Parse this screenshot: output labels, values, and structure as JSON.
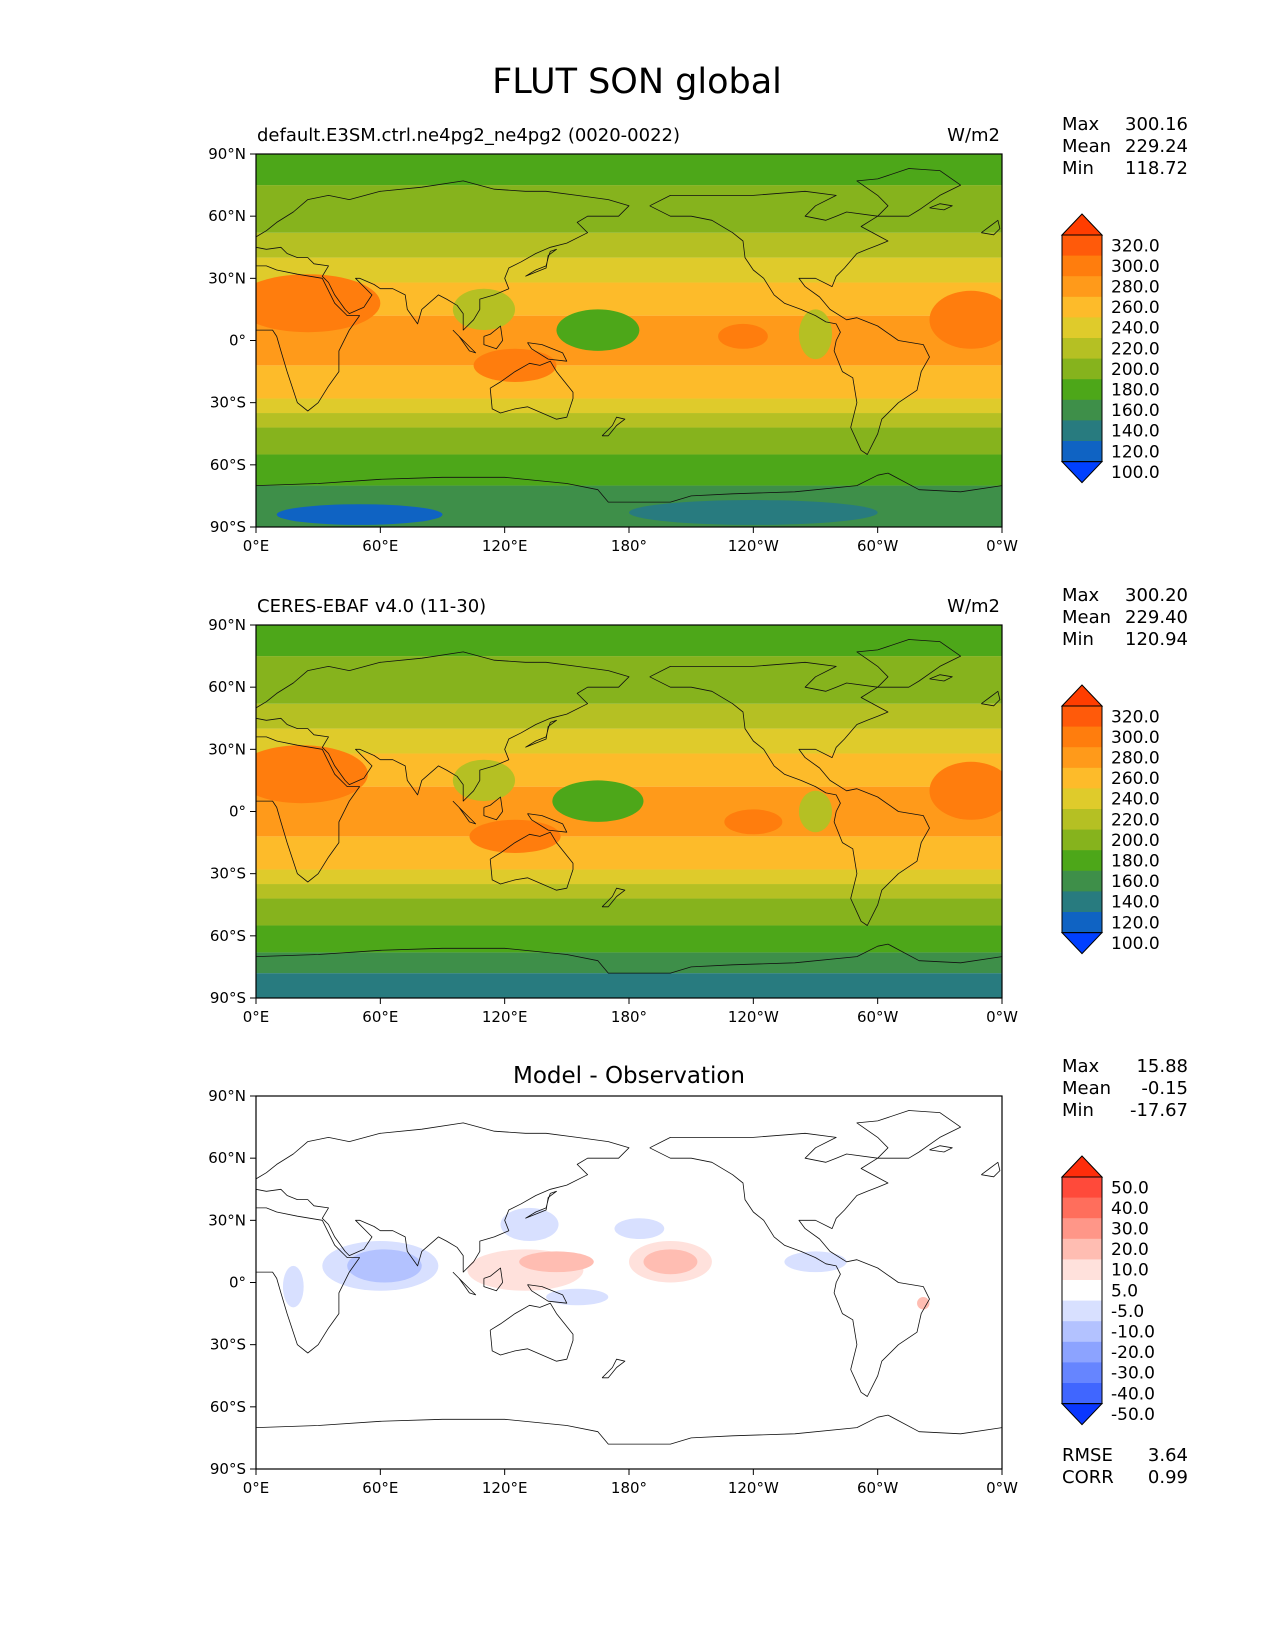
{
  "title": "FLUT SON global",
  "x_ticks": [
    "0°E",
    "60°E",
    "120°E",
    "180°",
    "120°W",
    "60°W",
    "0°W"
  ],
  "y_ticks": [
    "90°N",
    "60°N",
    "30°N",
    "0°",
    "30°S",
    "60°S",
    "90°S"
  ],
  "panels": [
    {
      "id": "model",
      "left_title": "default.E3SM.ctrl.ne4pg2_ne4pg2 (0020-0022)",
      "center_title": "",
      "units": "W/m2",
      "stats": [
        {
          "label": "Max",
          "value": "300.16"
        },
        {
          "label": "Mean",
          "value": "229.24"
        },
        {
          "label": "Min",
          "value": "118.72"
        }
      ],
      "colorbar": {
        "labels": [
          "320.0",
          "300.0",
          "280.0",
          "260.0",
          "240.0",
          "220.0",
          "200.0",
          "180.0",
          "160.0",
          "140.0",
          "120.0",
          "100.0"
        ],
        "colors": [
          "#ff3d00",
          "#ff5a0a",
          "#ff7d0d",
          "#ff9a1a",
          "#fdbb2a",
          "#dfcb2b",
          "#b5c023",
          "#86b31d",
          "#4da719",
          "#3e8f49",
          "#287b7f",
          "#0f63c3",
          "#0040ff"
        ]
      },
      "bands": [
        {
          "color": "#3e8f49",
          "y0": -90,
          "y1": -70
        },
        {
          "color": "#4da719",
          "y0": -70,
          "y1": -55
        },
        {
          "color": "#86b31d",
          "y0": -55,
          "y1": -42
        },
        {
          "color": "#b5c023",
          "y0": -42,
          "y1": -35
        },
        {
          "color": "#dfcb2b",
          "y0": -35,
          "y1": -28
        },
        {
          "color": "#fdbb2a",
          "y0": -28,
          "y1": -12
        },
        {
          "color": "#ff9a1a",
          "y0": -12,
          "y1": 12
        },
        {
          "color": "#fdbb2a",
          "y0": 12,
          "y1": 28
        },
        {
          "color": "#dfcb2b",
          "y0": 28,
          "y1": 40
        },
        {
          "color": "#b5c023",
          "y0": 40,
          "y1": 52
        },
        {
          "color": "#86b31d",
          "y0": 52,
          "y1": 75
        },
        {
          "color": "#4da719",
          "y0": 75,
          "y1": 90
        }
      ],
      "blobs": [
        {
          "color": "#ff7d0d",
          "lon": 25,
          "lat": 18,
          "rlon": 35,
          "rlat": 14
        },
        {
          "color": "#ff7d0d",
          "lon": 125,
          "lat": -12,
          "rlon": 20,
          "rlat": 8
        },
        {
          "color": "#ff7d0d",
          "lon": 235,
          "lat": 2,
          "rlon": 12,
          "rlat": 6
        },
        {
          "color": "#ff7d0d",
          "lon": 345,
          "lat": 10,
          "rlon": 20,
          "rlat": 14
        },
        {
          "color": "#4da719",
          "lon": 165,
          "lat": 5,
          "rlon": 20,
          "rlat": 10
        },
        {
          "color": "#b5c023",
          "lon": 110,
          "lat": 15,
          "rlon": 15,
          "rlat": 10
        },
        {
          "color": "#b5c023",
          "lon": 270,
          "lat": 3,
          "rlon": 8,
          "rlat": 12
        },
        {
          "color": "#0f63c3",
          "lon": 50,
          "lat": -84,
          "rlon": 40,
          "rlat": 5
        },
        {
          "color": "#287b7f",
          "lon": 240,
          "lat": -83,
          "rlon": 60,
          "rlat": 6
        }
      ]
    },
    {
      "id": "obs",
      "left_title": "CERES-EBAF v4.0 (11-30)",
      "center_title": "",
      "units": "W/m2",
      "stats": [
        {
          "label": "Max",
          "value": "300.20"
        },
        {
          "label": "Mean",
          "value": "229.40"
        },
        {
          "label": "Min",
          "value": "120.94"
        }
      ],
      "colorbar": {
        "labels": [
          "320.0",
          "300.0",
          "280.0",
          "260.0",
          "240.0",
          "220.0",
          "200.0",
          "180.0",
          "160.0",
          "140.0",
          "120.0",
          "100.0"
        ],
        "colors": [
          "#ff3d00",
          "#ff5a0a",
          "#ff7d0d",
          "#ff9a1a",
          "#fdbb2a",
          "#dfcb2b",
          "#b5c023",
          "#86b31d",
          "#4da719",
          "#3e8f49",
          "#287b7f",
          "#0f63c3",
          "#0040ff"
        ]
      },
      "bands": [
        {
          "color": "#287b7f",
          "y0": -90,
          "y1": -78
        },
        {
          "color": "#3e8f49",
          "y0": -78,
          "y1": -68
        },
        {
          "color": "#4da719",
          "y0": -68,
          "y1": -55
        },
        {
          "color": "#86b31d",
          "y0": -55,
          "y1": -42
        },
        {
          "color": "#b5c023",
          "y0": -42,
          "y1": -35
        },
        {
          "color": "#dfcb2b",
          "y0": -35,
          "y1": -28
        },
        {
          "color": "#fdbb2a",
          "y0": -28,
          "y1": -12
        },
        {
          "color": "#ff9a1a",
          "y0": -12,
          "y1": 12
        },
        {
          "color": "#fdbb2a",
          "y0": 12,
          "y1": 28
        },
        {
          "color": "#dfcb2b",
          "y0": 28,
          "y1": 40
        },
        {
          "color": "#b5c023",
          "y0": 40,
          "y1": 52
        },
        {
          "color": "#86b31d",
          "y0": 52,
          "y1": 75
        },
        {
          "color": "#4da719",
          "y0": 75,
          "y1": 90
        }
      ],
      "blobs": [
        {
          "color": "#ff7d0d",
          "lon": 22,
          "lat": 18,
          "rlon": 32,
          "rlat": 14
        },
        {
          "color": "#ff7d0d",
          "lon": 125,
          "lat": -12,
          "rlon": 22,
          "rlat": 8
        },
        {
          "color": "#ff7d0d",
          "lon": 240,
          "lat": -5,
          "rlon": 14,
          "rlat": 6
        },
        {
          "color": "#ff7d0d",
          "lon": 345,
          "lat": 10,
          "rlon": 20,
          "rlat": 14
        },
        {
          "color": "#4da719",
          "lon": 165,
          "lat": 5,
          "rlon": 22,
          "rlat": 10
        },
        {
          "color": "#b5c023",
          "lon": 110,
          "lat": 15,
          "rlon": 15,
          "rlat": 10
        },
        {
          "color": "#b5c023",
          "lon": 270,
          "lat": 0,
          "rlon": 8,
          "rlat": 10
        }
      ]
    },
    {
      "id": "diff",
      "left_title": "",
      "center_title": "Model - Observation",
      "units": "",
      "stats": [
        {
          "label": "Max",
          "value": "15.88"
        },
        {
          "label": "Mean",
          "value": "-0.15"
        },
        {
          "label": "Min",
          "value": "-17.67"
        }
      ],
      "colorbar": {
        "labels": [
          "50.0",
          "40.0",
          "30.0",
          "20.0",
          "10.0",
          "5.0",
          "-5.0",
          "-10.0",
          "-20.0",
          "-30.0",
          "-40.0",
          "-50.0"
        ],
        "colors": [
          "#ff2d0a",
          "#ff4a3a",
          "#ff6e5c",
          "#ff9688",
          "#ffbdb2",
          "#ffe1dc",
          "#ffffff",
          "#d8e0ff",
          "#b3c2ff",
          "#8ca3ff",
          "#6685ff",
          "#4066ff",
          "#0a37ff"
        ]
      },
      "bands": [],
      "blobs": [
        {
          "color": "#d8e0ff",
          "lon": 60,
          "lat": 8,
          "rlon": 28,
          "rlat": 12
        },
        {
          "color": "#b3c2ff",
          "lon": 62,
          "lat": 8,
          "rlon": 18,
          "rlat": 8
        },
        {
          "color": "#d8e0ff",
          "lon": 18,
          "lat": -2,
          "rlon": 5,
          "rlat": 10
        },
        {
          "color": "#d8e0ff",
          "lon": 132,
          "lat": 28,
          "rlon": 14,
          "rlat": 8
        },
        {
          "color": "#d8e0ff",
          "lon": 185,
          "lat": 26,
          "rlon": 12,
          "rlat": 5
        },
        {
          "color": "#d8e0ff",
          "lon": 155,
          "lat": -7,
          "rlon": 15,
          "rlat": 4
        },
        {
          "color": "#d8e0ff",
          "lon": 270,
          "lat": 10,
          "rlon": 15,
          "rlat": 5
        },
        {
          "color": "#ffe1dc",
          "lon": 130,
          "lat": 6,
          "rlon": 28,
          "rlat": 10
        },
        {
          "color": "#ffbdb2",
          "lon": 145,
          "lat": 10,
          "rlon": 18,
          "rlat": 5
        },
        {
          "color": "#ffe1dc",
          "lon": 200,
          "lat": 10,
          "rlon": 20,
          "rlat": 10
        },
        {
          "color": "#ffbdb2",
          "lon": 200,
          "lat": 10,
          "rlon": 13,
          "rlat": 6
        },
        {
          "color": "#ffbdb2",
          "lon": 322,
          "lat": -10,
          "rlon": 3,
          "rlat": 3
        }
      ],
      "extra_stats": [
        {
          "label": "RMSE",
          "value": "3.64"
        },
        {
          "label": "CORR",
          "value": "0.99"
        }
      ]
    }
  ],
  "coastlines": [
    [
      [
        0,
        5
      ],
      [
        8,
        5
      ],
      [
        10,
        2
      ],
      [
        12,
        -5
      ],
      [
        15,
        -15
      ],
      [
        20,
        -30
      ],
      [
        25,
        -34
      ],
      [
        30,
        -30
      ],
      [
        35,
        -22
      ],
      [
        40,
        -15
      ],
      [
        40,
        -5
      ],
      [
        45,
        5
      ],
      [
        50,
        12
      ],
      [
        44,
        12
      ],
      [
        38,
        18
      ],
      [
        32,
        30
      ],
      [
        20,
        32
      ],
      [
        10,
        34
      ],
      [
        5,
        36
      ],
      [
        0,
        36
      ]
    ],
    [
      [
        0,
        50
      ],
      [
        5,
        53
      ],
      [
        10,
        57
      ],
      [
        18,
        62
      ],
      [
        25,
        68
      ],
      [
        35,
        70
      ],
      [
        45,
        68
      ],
      [
        60,
        72
      ],
      [
        80,
        74
      ],
      [
        100,
        77
      ],
      [
        115,
        73
      ],
      [
        130,
        72
      ],
      [
        140,
        72
      ],
      [
        155,
        70
      ],
      [
        170,
        68
      ],
      [
        180,
        65
      ],
      [
        175,
        60
      ],
      [
        160,
        60
      ],
      [
        155,
        57
      ],
      [
        160,
        52
      ],
      [
        150,
        47
      ],
      [
        142,
        45
      ],
      [
        135,
        42
      ],
      [
        128,
        38
      ],
      [
        122,
        35
      ],
      [
        120,
        30
      ],
      [
        122,
        25
      ],
      [
        115,
        22
      ],
      [
        108,
        20
      ],
      [
        108,
        15
      ],
      [
        105,
        10
      ],
      [
        100,
        5
      ],
      [
        100,
        13
      ],
      [
        97,
        17
      ],
      [
        92,
        20
      ],
      [
        88,
        22
      ],
      [
        80,
        15
      ],
      [
        78,
        8
      ],
      [
        73,
        15
      ],
      [
        72,
        22
      ],
      [
        66,
        25
      ],
      [
        60,
        25
      ],
      [
        57,
        27
      ],
      [
        50,
        30
      ],
      [
        48,
        30
      ],
      [
        56,
        22
      ],
      [
        52,
        16
      ],
      [
        45,
        13
      ],
      [
        43,
        15
      ],
      [
        38,
        22
      ],
      [
        35,
        28
      ],
      [
        32,
        31
      ],
      [
        35,
        36
      ],
      [
        28,
        37
      ],
      [
        25,
        40
      ],
      [
        20,
        40
      ],
      [
        15,
        42
      ],
      [
        12,
        45
      ],
      [
        5,
        44
      ],
      [
        0,
        45
      ]
    ],
    [
      [
        113,
        -23
      ],
      [
        114,
        -33
      ],
      [
        118,
        -35
      ],
      [
        125,
        -33
      ],
      [
        131,
        -32
      ],
      [
        138,
        -35
      ],
      [
        145,
        -38
      ],
      [
        150,
        -37
      ],
      [
        153,
        -28
      ],
      [
        153,
        -25
      ],
      [
        145,
        -15
      ],
      [
        142,
        -10
      ],
      [
        137,
        -12
      ],
      [
        132,
        -11
      ],
      [
        125,
        -15
      ],
      [
        118,
        -20
      ],
      [
        113,
        -23
      ]
    ],
    [
      [
        95,
        5
      ],
      [
        100,
        0
      ],
      [
        106,
        -6
      ],
      [
        103,
        -5
      ],
      [
        98,
        2
      ],
      [
        95,
        5
      ]
    ],
    [
      [
        110,
        2
      ],
      [
        113,
        3
      ],
      [
        118,
        7
      ],
      [
        119,
        0
      ],
      [
        116,
        -4
      ],
      [
        110,
        -2
      ],
      [
        110,
        2
      ]
    ],
    [
      [
        131,
        -1
      ],
      [
        138,
        -2
      ],
      [
        148,
        -6
      ],
      [
        150,
        -10
      ],
      [
        141,
        -9
      ],
      [
        133,
        -4
      ],
      [
        131,
        -1
      ]
    ],
    [
      [
        130,
        31
      ],
      [
        135,
        34
      ],
      [
        140,
        36
      ],
      [
        141,
        40
      ],
      [
        142,
        43
      ],
      [
        145,
        44
      ],
      [
        141,
        41
      ],
      [
        140,
        35
      ],
      [
        135,
        33
      ],
      [
        130,
        31
      ]
    ],
    [
      [
        167,
        -46
      ],
      [
        172,
        -41
      ],
      [
        174,
        -37
      ],
      [
        178,
        -38
      ],
      [
        174,
        -41
      ],
      [
        170,
        -46
      ],
      [
        167,
        -46
      ]
    ],
    [
      [
        190,
        65
      ],
      [
        200,
        60
      ],
      [
        210,
        60
      ],
      [
        220,
        58
      ],
      [
        230,
        52
      ],
      [
        235,
        48
      ],
      [
        236,
        40
      ],
      [
        240,
        34
      ],
      [
        245,
        30
      ],
      [
        250,
        22
      ],
      [
        255,
        18
      ],
      [
        263,
        15
      ],
      [
        270,
        12
      ],
      [
        275,
        9
      ],
      [
        280,
        8
      ],
      [
        282,
        4
      ],
      [
        280,
        0
      ],
      [
        279,
        -5
      ],
      [
        283,
        -15
      ],
      [
        288,
        -18
      ],
      [
        290,
        -30
      ],
      [
        287,
        -42
      ],
      [
        292,
        -53
      ],
      [
        295,
        -55
      ],
      [
        300,
        -45
      ],
      [
        302,
        -38
      ],
      [
        310,
        -30
      ],
      [
        319,
        -24
      ],
      [
        321,
        -15
      ],
      [
        325,
        -8
      ],
      [
        322,
        -2
      ],
      [
        310,
        0
      ],
      [
        300,
        7
      ],
      [
        290,
        11
      ],
      [
        285,
        10
      ],
      [
        277,
        15
      ],
      [
        272,
        21
      ],
      [
        265,
        26
      ],
      [
        262,
        30
      ],
      [
        270,
        30
      ],
      [
        278,
        26
      ],
      [
        280,
        31
      ],
      [
        284,
        35
      ],
      [
        290,
        42
      ],
      [
        295,
        44
      ],
      [
        300,
        46
      ],
      [
        305,
        48
      ],
      [
        292,
        55
      ],
      [
        300,
        60
      ],
      [
        285,
        62
      ],
      [
        280,
        60
      ],
      [
        275,
        58
      ],
      [
        265,
        60
      ],
      [
        270,
        65
      ],
      [
        280,
        70
      ],
      [
        265,
        72
      ],
      [
        240,
        70
      ],
      [
        220,
        70
      ],
      [
        200,
        70
      ],
      [
        190,
        65
      ]
    ],
    [
      [
        300,
        60
      ],
      [
        315,
        60
      ],
      [
        320,
        63
      ],
      [
        330,
        70
      ],
      [
        340,
        75
      ],
      [
        330,
        82
      ],
      [
        315,
        83
      ],
      [
        300,
        78
      ],
      [
        290,
        77
      ],
      [
        300,
        70
      ],
      [
        305,
        65
      ],
      [
        300,
        60
      ]
    ],
    [
      [
        325,
        64
      ],
      [
        330,
        66
      ],
      [
        336,
        65
      ],
      [
        332,
        63
      ],
      [
        325,
        64
      ]
    ],
    [
      [
        350,
        52
      ],
      [
        354,
        55
      ],
      [
        358,
        58
      ],
      [
        359,
        54
      ],
      [
        356,
        51
      ],
      [
        350,
        52
      ]
    ],
    [
      [
        0,
        -70
      ],
      [
        30,
        -69
      ],
      [
        60,
        -67
      ],
      [
        90,
        -66
      ],
      [
        120,
        -66
      ],
      [
        150,
        -69
      ],
      [
        165,
        -72
      ],
      [
        170,
        -78
      ],
      [
        200,
        -78
      ],
      [
        210,
        -75
      ],
      [
        230,
        -74
      ],
      [
        260,
        -73
      ],
      [
        290,
        -70
      ],
      [
        300,
        -65
      ],
      [
        305,
        -64
      ],
      [
        320,
        -72
      ],
      [
        340,
        -73
      ],
      [
        360,
        -70
      ]
    ]
  ]
}
